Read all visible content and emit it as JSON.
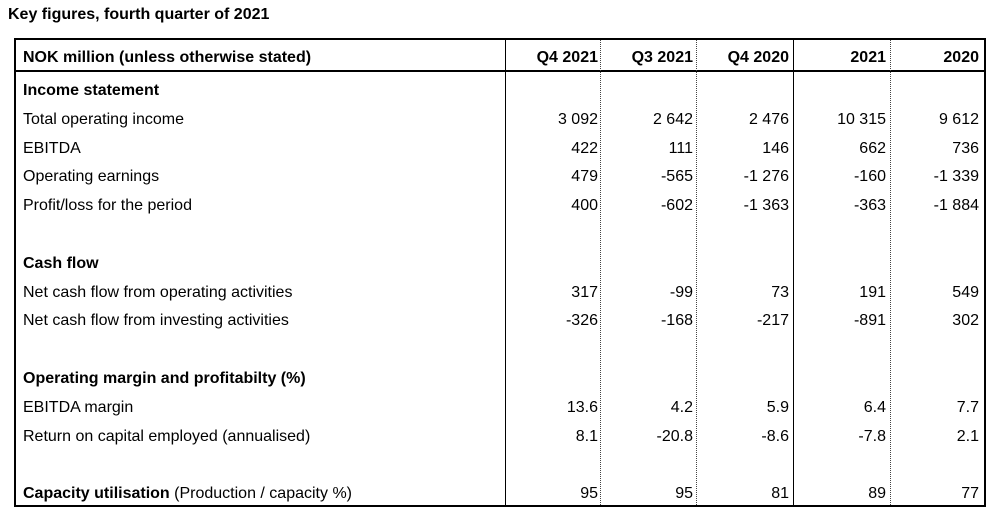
{
  "title": "Key figures, fourth quarter of 2021",
  "header": {
    "label": "NOK million (unless otherwise stated)",
    "columns": [
      "Q4 2021",
      "Q3 2021",
      "Q4 2020",
      "2021",
      "2020"
    ]
  },
  "rows": [
    {
      "label": "Income statement",
      "section": true
    },
    {
      "label": "Total operating income",
      "values": [
        "3 092",
        "2 642",
        "2 476",
        "10 315",
        "9 612"
      ]
    },
    {
      "label": "EBITDA",
      "values": [
        "422",
        "111",
        "146",
        "662",
        "736"
      ]
    },
    {
      "label": "Operating earnings",
      "values": [
        "479",
        "-565",
        "-1 276",
        "-160",
        "-1 339"
      ]
    },
    {
      "label": "Profit/loss for the period",
      "values": [
        "400",
        "-602",
        "-1 363",
        "-363",
        "-1 884"
      ]
    },
    {
      "label": "",
      "blank": true
    },
    {
      "label": "Cash flow",
      "section": true
    },
    {
      "label": "Net cash flow from operating activities",
      "values": [
        "317",
        "-99",
        "73",
        "191",
        "549"
      ]
    },
    {
      "label": "Net cash flow from investing activities",
      "values": [
        "-326",
        "-168",
        "-217",
        "-891",
        "302"
      ]
    },
    {
      "label": "",
      "blank": true
    },
    {
      "label": "Operating margin and profitabilty (%)",
      "section": true
    },
    {
      "label": "EBITDA margin",
      "values": [
        "13.6",
        "4.2",
        "5.9",
        "6.4",
        "7.7"
      ]
    },
    {
      "label": "Return on capital employed (annualised)",
      "values": [
        "8.1",
        "-20.8",
        "-8.6",
        "-7.8",
        "2.1"
      ]
    },
    {
      "label": "",
      "blank": true
    },
    {
      "label": "Capacity utilisation",
      "label_suffix": " (Production / capacity %)",
      "values": [
        "95",
        "95",
        "81",
        "89",
        "77"
      ]
    }
  ]
}
